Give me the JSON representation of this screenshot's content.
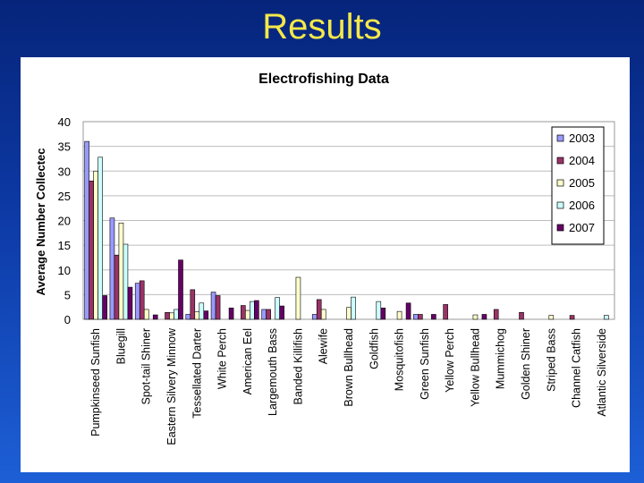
{
  "slide": {
    "title": "Results"
  },
  "chart_data": {
    "type": "bar",
    "title": "Electrofishing Data",
    "xlabel": "",
    "ylabel": "Average Number Collectec",
    "ylim": [
      0,
      40
    ],
    "yticks": [
      0,
      5,
      10,
      15,
      20,
      25,
      30,
      35,
      40
    ],
    "grid": true,
    "legend_position": "top-right",
    "categories": [
      "Pumpkinseed Sunfish",
      "Bluegill",
      "Spot-tail Shiner",
      "Eastern Silvery Minnow",
      "Tessellated Darter",
      "White Perch",
      "American Eel",
      "Largemouth Bass",
      "Banded Killifish",
      "Alewife",
      "Brown Bullhead",
      "Goldfish",
      "Mosquitofish",
      "Green Sunfish",
      "Yellow Perch",
      "Yellow Bullhead",
      "Mummichog",
      "Golden Shiner",
      "Striped Bass",
      "Channel Catfish",
      "Atlantic Silverside"
    ],
    "series": [
      {
        "name": "2003",
        "color": "#9999ff",
        "values": [
          36,
          20.5,
          7.3,
          0,
          1,
          5.5,
          0,
          2,
          0,
          1,
          0,
          0,
          0,
          1,
          0,
          0,
          0,
          0,
          0,
          0,
          0
        ]
      },
      {
        "name": "2004",
        "color": "#993366",
        "values": [
          28,
          13,
          7.8,
          1.4,
          6,
          4.8,
          2.8,
          2,
          0,
          4,
          0,
          0,
          0,
          1,
          3,
          0,
          2,
          1.4,
          0,
          0.8,
          0
        ]
      },
      {
        "name": "2005",
        "color": "#ffffcc",
        "values": [
          30,
          19.5,
          2,
          1.3,
          1.5,
          0,
          1.8,
          0,
          8.5,
          2,
          2.4,
          0,
          1.6,
          0,
          0,
          0.9,
          0,
          0,
          0.8,
          0,
          0
        ]
      },
      {
        "name": "2006",
        "color": "#ccffff",
        "values": [
          32.8,
          15.2,
          0,
          2,
          3.3,
          0,
          3.6,
          4.4,
          0,
          0,
          4.5,
          3.6,
          0,
          0,
          0,
          0,
          0,
          0,
          0,
          0,
          0.8
        ]
      },
      {
        "name": "2007",
        "color": "#660066",
        "values": [
          4.8,
          6.5,
          0.9,
          12,
          1.7,
          2.3,
          3.8,
          2.7,
          0,
          0,
          0,
          2.3,
          3.3,
          1,
          0,
          1,
          0,
          0,
          0,
          0,
          0
        ]
      }
    ]
  }
}
